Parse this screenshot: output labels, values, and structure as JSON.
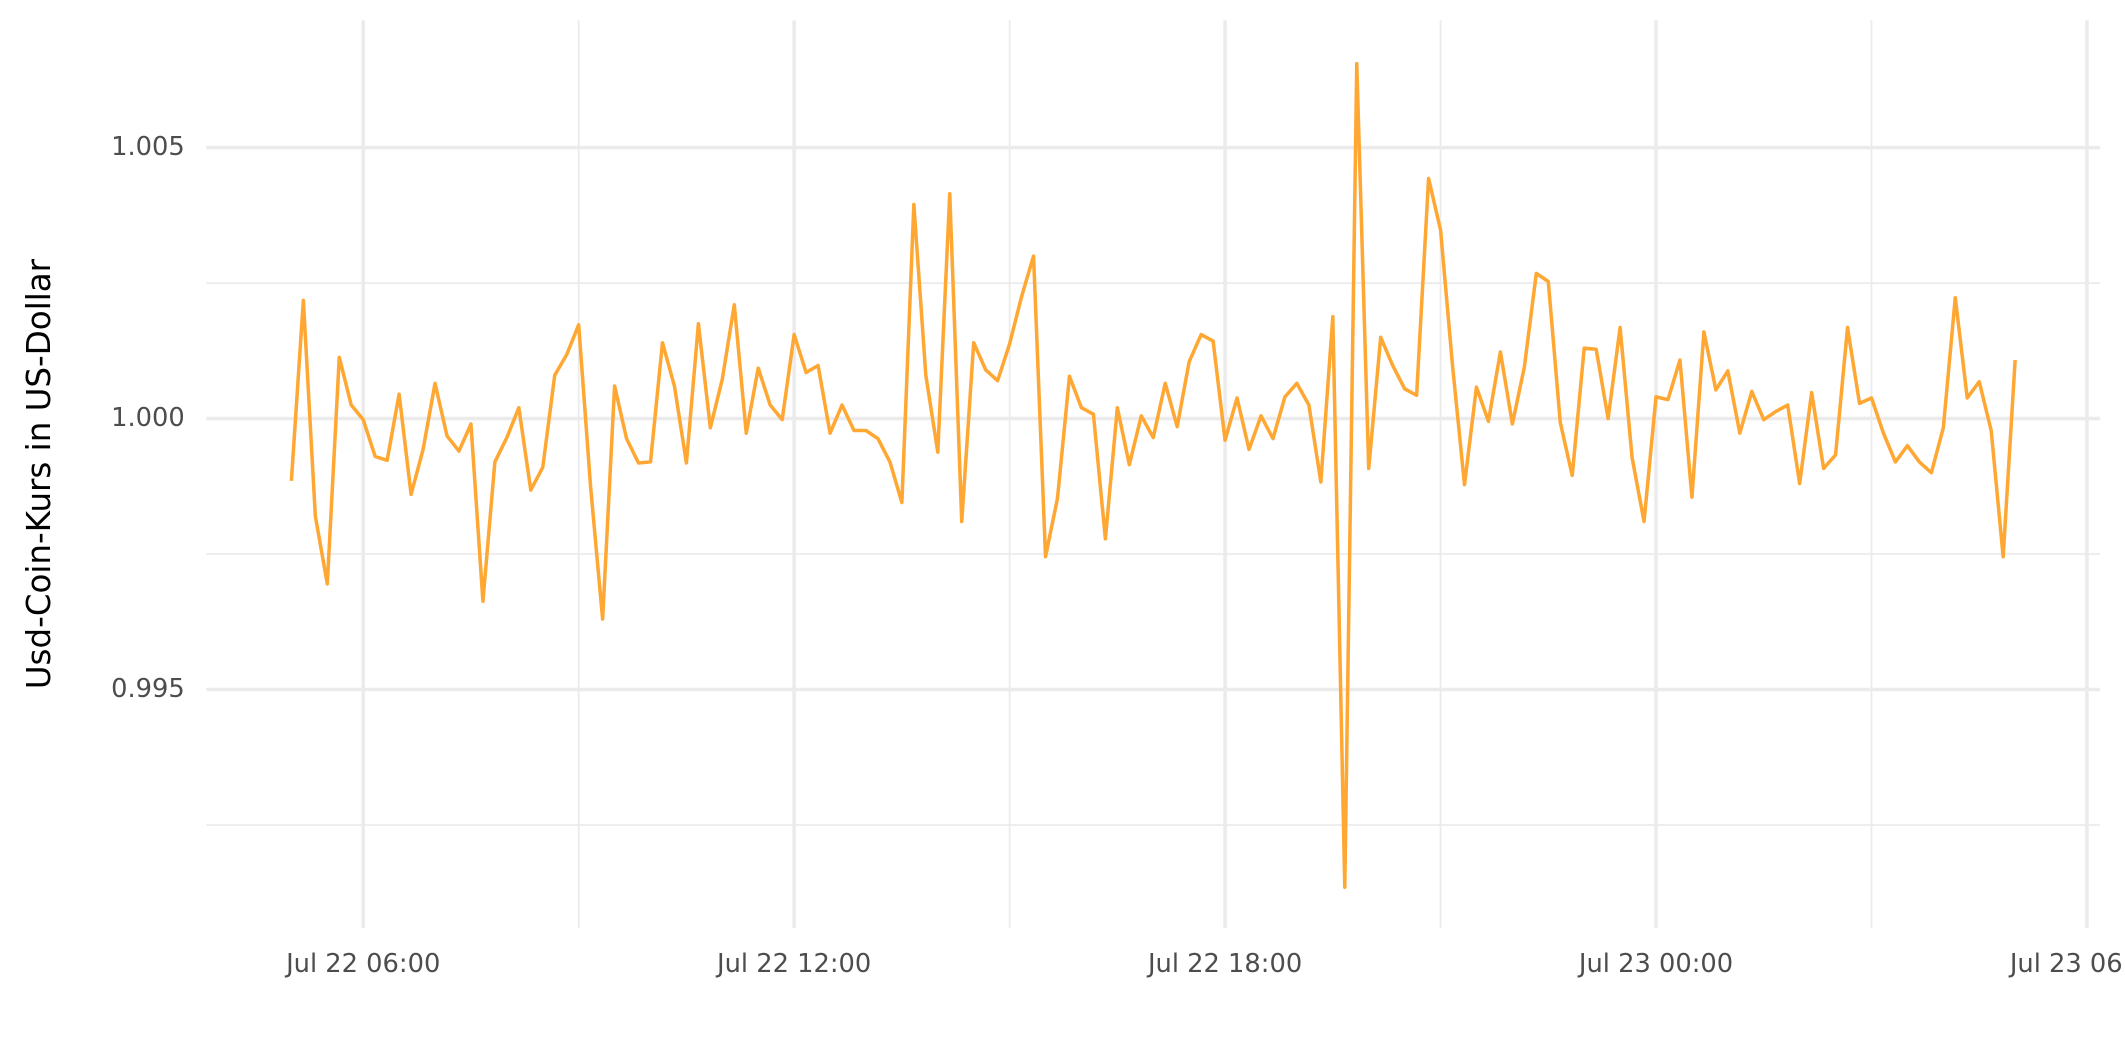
{
  "chart_data": {
    "type": "line",
    "ylabel": "Usd-Coin-Kurs in US-Dollar",
    "color": "#ffa733",
    "grid": true,
    "xlim": [
      "Jul 22 03:49",
      "Jul 23 06:11"
    ],
    "xticks": [
      "Jul 22 06:00",
      "Jul 22 12:00",
      "Jul 22 18:00",
      "Jul 23 00:00",
      "Jul 23 06:00"
    ],
    "ylim": [
      0.9906,
      1.00735
    ],
    "yticks": [
      0.995,
      {
        "value": 1,
        "label": "1.000"
      },
      1.005
    ],
    "x": [
      "Jul 22 05:00",
      "Jul 22 05:10",
      "Jul 22 05:20",
      "Jul 22 05:30",
      "Jul 22 05:40",
      "Jul 22 05:50",
      "Jul 22 06:00",
      "Jul 22 06:10",
      "Jul 22 06:20",
      "Jul 22 06:30",
      "Jul 22 06:40",
      "Jul 22 06:50",
      "Jul 22 07:00",
      "Jul 22 07:10",
      "Jul 22 07:20",
      "Jul 22 07:30",
      "Jul 22 07:40",
      "Jul 22 07:50",
      "Jul 22 08:00",
      "Jul 22 08:10",
      "Jul 22 08:20",
      "Jul 22 08:30",
      "Jul 22 08:40",
      "Jul 22 08:50",
      "Jul 22 09:00",
      "Jul 22 09:10",
      "Jul 22 09:20",
      "Jul 22 09:30",
      "Jul 22 09:40",
      "Jul 22 09:50",
      "Jul 22 10:00",
      "Jul 22 10:10",
      "Jul 22 10:20",
      "Jul 22 10:30",
      "Jul 22 10:40",
      "Jul 22 10:50",
      "Jul 22 11:00",
      "Jul 22 11:10",
      "Jul 22 11:20",
      "Jul 22 11:30",
      "Jul 22 11:40",
      "Jul 22 11:50",
      "Jul 22 12:00",
      "Jul 22 12:10",
      "Jul 22 12:20",
      "Jul 22 12:30",
      "Jul 22 12:40",
      "Jul 22 12:50",
      "Jul 22 13:00",
      "Jul 22 13:10",
      "Jul 22 13:20",
      "Jul 22 13:30",
      "Jul 22 13:40",
      "Jul 22 13:50",
      "Jul 22 14:00",
      "Jul 22 14:10",
      "Jul 22 14:20",
      "Jul 22 14:30",
      "Jul 22 14:40",
      "Jul 22 14:50",
      "Jul 22 15:00",
      "Jul 22 15:10",
      "Jul 22 15:20",
      "Jul 22 15:30",
      "Jul 22 15:40",
      "Jul 22 15:50",
      "Jul 22 16:00",
      "Jul 22 16:10",
      "Jul 22 16:20",
      "Jul 22 16:30",
      "Jul 22 16:40",
      "Jul 22 16:50",
      "Jul 22 17:00",
      "Jul 22 17:10",
      "Jul 22 17:20",
      "Jul 22 17:30",
      "Jul 22 17:40",
      "Jul 22 17:50",
      "Jul 22 18:00",
      "Jul 22 18:10",
      "Jul 22 18:20",
      "Jul 22 18:30",
      "Jul 22 18:40",
      "Jul 22 18:50",
      "Jul 22 19:00",
      "Jul 22 19:10",
      "Jul 22 19:20",
      "Jul 22 19:30",
      "Jul 22 19:40",
      "Jul 22 19:50",
      "Jul 22 20:00",
      "Jul 22 20:10",
      "Jul 22 20:20",
      "Jul 22 20:30",
      "Jul 22 20:40",
      "Jul 22 20:50",
      "Jul 22 21:00",
      "Jul 22 21:10",
      "Jul 22 21:20",
      "Jul 22 21:30",
      "Jul 22 21:40",
      "Jul 22 21:50",
      "Jul 22 22:00",
      "Jul 22 22:10",
      "Jul 22 22:20",
      "Jul 22 22:30",
      "Jul 22 22:40",
      "Jul 22 22:50",
      "Jul 22 23:00",
      "Jul 22 23:10",
      "Jul 22 23:20",
      "Jul 22 23:30",
      "Jul 22 23:40",
      "Jul 22 23:50",
      "Jul 23 00:00",
      "Jul 23 00:10",
      "Jul 23 00:20",
      "Jul 23 00:30",
      "Jul 23 00:40",
      "Jul 23 00:50",
      "Jul 23 01:00",
      "Jul 23 01:10",
      "Jul 23 01:20",
      "Jul 23 01:30",
      "Jul 23 01:40",
      "Jul 23 01:50",
      "Jul 23 02:00",
      "Jul 23 02:10",
      "Jul 23 02:20",
      "Jul 23 02:30",
      "Jul 23 02:40",
      "Jul 23 02:50",
      "Jul 23 03:00",
      "Jul 23 03:10",
      "Jul 23 03:20",
      "Jul 23 03:30",
      "Jul 23 03:40",
      "Jul 23 03:50",
      "Jul 23 04:00",
      "Jul 23 04:10",
      "Jul 23 04:20",
      "Jul 23 04:30",
      "Jul 23 04:40",
      "Jul 23 04:50",
      "Jul 23 05:00"
    ],
    "values": [
      0.99885,
      1.00218,
      0.9982,
      0.99695,
      1.00113,
      1.00025,
      0.99998,
      0.9993,
      0.99923,
      1.00045,
      0.9986,
      0.99943,
      1.00065,
      0.99968,
      0.9994,
      0.9999,
      0.99663,
      0.9992,
      0.99965,
      1.0002,
      0.99868,
      0.9991,
      1.0008,
      1.00118,
      1.00173,
      0.99873,
      0.9963,
      1.0006,
      0.99963,
      0.99918,
      0.9992,
      1.0014,
      1.0006,
      0.99918,
      1.00175,
      0.99983,
      1.00073,
      1.0021,
      0.99973,
      1.00093,
      1.00025,
      0.99998,
      1.00155,
      1.00085,
      1.00098,
      0.99973,
      1.00025,
      0.99978,
      0.99978,
      0.99963,
      0.9992,
      0.99845,
      1.00395,
      1.0008,
      0.99938,
      1.00415,
      0.9981,
      1.0014,
      1.0009,
      1.0007,
      1.00138,
      1.00225,
      1.003,
      0.99745,
      0.99853,
      1.00078,
      1.0002,
      1.00008,
      0.99778,
      1.0002,
      0.99915,
      1.00005,
      0.99965,
      1.00065,
      0.99985,
      1.00105,
      1.00155,
      1.00143,
      0.9996,
      1.00038,
      0.99943,
      1.00005,
      0.99963,
      1.0004,
      1.00065,
      1.00025,
      0.99883,
      1.00188,
      0.99135,
      1.00655,
      0.99908,
      1.0015,
      1.00098,
      1.00055,
      1.00043,
      1.00443,
      1.00348,
      1.00098,
      0.99878,
      1.00058,
      0.99995,
      1.00123,
      0.9999,
      1.00095,
      1.00268,
      1.00253,
      0.99993,
      0.99895,
      1.0013,
      1.00128,
      1.0,
      1.00168,
      0.99928,
      0.9981,
      1.0004,
      1.00035,
      1.00108,
      0.99855,
      1.0016,
      1.00053,
      1.00088,
      0.99973,
      1.0005,
      0.99998,
      1.00013,
      1.00025,
      0.9988,
      1.00048,
      0.99908,
      0.99933,
      1.00168,
      1.00028,
      1.00038,
      0.99973,
      0.9992,
      0.9995,
      0.9992,
      0.999,
      0.99983,
      1.00223,
      1.00038,
      1.00068,
      0.99978,
      0.99745,
      1.00108
    ]
  }
}
